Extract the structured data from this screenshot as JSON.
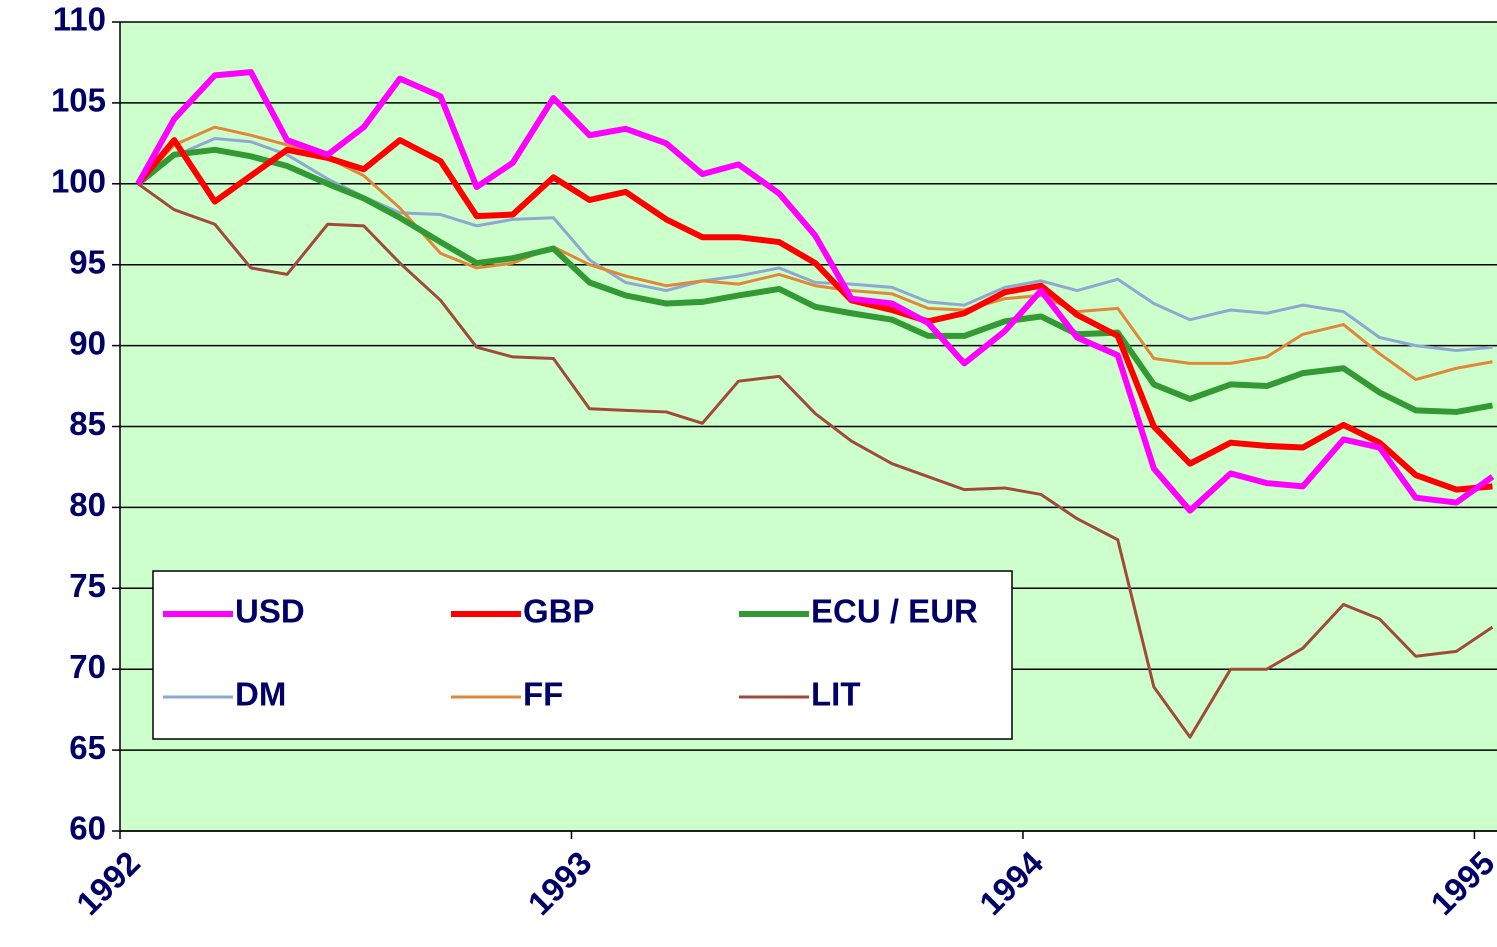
{
  "chart_data": {
    "type": "line",
    "x": [
      1992.04,
      1992.12,
      1992.21,
      1992.29,
      1992.37,
      1992.46,
      1992.54,
      1992.62,
      1992.71,
      1992.79,
      1992.87,
      1992.96,
      1993.04,
      1993.12,
      1993.21,
      1993.29,
      1993.37,
      1993.46,
      1993.54,
      1993.62,
      1993.71,
      1993.79,
      1993.87,
      1993.96,
      1994.04,
      1994.12,
      1994.21,
      1994.29,
      1994.37,
      1994.46,
      1994.54,
      1994.62,
      1994.71,
      1994.79,
      1994.87,
      1994.96,
      1995.04
    ],
    "series": [
      {
        "name": "USD",
        "color": "#ff00ff",
        "width": 6,
        "values": [
          100,
          104,
          106.7,
          106.9,
          102.7,
          101.8,
          103.5,
          106.5,
          105.4,
          99.8,
          101.3,
          105.3,
          103.0,
          103.4,
          102.5,
          100.6,
          101.2,
          99.4,
          96.8,
          92.9,
          92.6,
          91.4,
          88.9,
          90.9,
          93.4,
          90.5,
          89.4,
          82.4,
          79.8,
          82.1,
          81.5,
          81.3,
          84.2,
          83.7,
          80.6,
          80.3,
          81.9
        ]
      },
      {
        "name": "GBP",
        "color": "#ff0000",
        "width": 6,
        "values": [
          100,
          102.7,
          98.9,
          100.5,
          102.1,
          101.6,
          100.9,
          102.7,
          101.4,
          98.0,
          98.1,
          100.4,
          99.0,
          99.5,
          97.8,
          96.7,
          96.7,
          96.4,
          95.1,
          92.8,
          92.2,
          91.5,
          92.0,
          93.3,
          93.7,
          91.9,
          90.6,
          85.0,
          82.7,
          84.0,
          83.8,
          83.7,
          85.1,
          84.0,
          82.0,
          81.1,
          81.3
        ]
      },
      {
        "name": "ECU / EUR",
        "color": "#339933",
        "width": 6,
        "values": [
          100,
          101.8,
          102.1,
          101.7,
          101.1,
          100.0,
          99.1,
          97.9,
          96.4,
          95.1,
          95.4,
          96.0,
          93.9,
          93.1,
          92.6,
          92.7,
          93.1,
          93.5,
          92.4,
          92.0,
          91.6,
          90.6,
          90.6,
          91.5,
          91.8,
          90.7,
          90.8,
          87.6,
          86.7,
          87.6,
          87.5,
          88.3,
          88.6,
          87.1,
          86.0,
          85.9,
          86.3
        ]
      },
      {
        "name": "DM",
        "color": "#8fa8d0",
        "width": 3,
        "values": [
          100,
          101.7,
          102.8,
          102.6,
          101.8,
          100.3,
          99.2,
          98.2,
          98.1,
          97.4,
          97.8,
          97.9,
          95.3,
          93.9,
          93.4,
          94.0,
          94.3,
          94.8,
          93.9,
          93.8,
          93.6,
          92.7,
          92.5,
          93.6,
          94.0,
          93.4,
          94.1,
          92.6,
          91.6,
          92.2,
          92.0,
          92.5,
          92.1,
          90.5,
          90.0,
          89.7,
          89.9
        ]
      },
      {
        "name": "FF",
        "color": "#e0873a",
        "width": 3,
        "values": [
          100,
          102.4,
          103.5,
          103.0,
          102.4,
          101.6,
          100.5,
          98.5,
          95.7,
          94.8,
          95.1,
          96.1,
          95.0,
          94.3,
          93.7,
          94.0,
          93.8,
          94.4,
          93.7,
          93.4,
          93.2,
          92.3,
          92.2,
          92.9,
          93.1,
          92.1,
          92.3,
          89.2,
          88.9,
          88.9,
          89.3,
          90.7,
          91.3,
          89.5,
          87.9,
          88.6,
          89.0
        ]
      },
      {
        "name": "LIT",
        "color": "#a04a3a",
        "width": 3,
        "values": [
          100,
          98.4,
          97.5,
          94.8,
          94.4,
          97.5,
          97.4,
          95.1,
          92.8,
          89.9,
          89.3,
          89.2,
          86.1,
          86.0,
          85.9,
          85.2,
          87.8,
          88.1,
          85.8,
          84.1,
          82.7,
          81.9,
          81.1,
          81.2,
          80.8,
          79.3,
          78.0,
          68.9,
          65.8,
          70.0,
          70.0,
          71.3,
          74.0,
          73.1,
          70.8,
          71.1,
          72.6
        ]
      }
    ],
    "xlim": [
      1992,
      1995.05
    ],
    "xticks": [
      1992,
      1993,
      1994,
      1995
    ],
    "ylim": [
      60,
      110
    ],
    "yticks": [
      60,
      65,
      70,
      75,
      80,
      85,
      90,
      95,
      100,
      105,
      110
    ],
    "grid": true,
    "legend": "lower left",
    "plot_background": "#ccffcc"
  }
}
